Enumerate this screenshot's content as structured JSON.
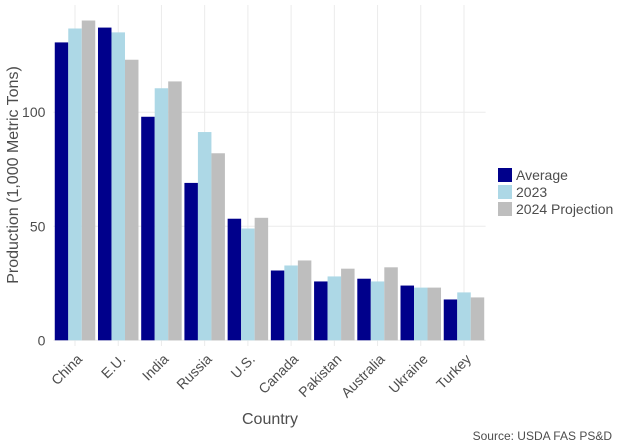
{
  "chart_data": {
    "type": "bar",
    "y_label": "Production (1,000 Metric Tons)",
    "x_label": "Country",
    "caption": "Source: USDA FAS PS&D",
    "categories": [
      "China",
      "E.U.",
      "India",
      "Russia",
      "U.S.",
      "Canada",
      "Pakistan",
      "Australia",
      "Ukraine",
      "Turkey"
    ],
    "series": [
      {
        "name": "Average",
        "color": "#00008b",
        "values": [
          130.6,
          137.1,
          98,
          69,
          53.3,
          30.6,
          25.8,
          27,
          24,
          17.9
        ]
      },
      {
        "name": "2023",
        "color": "#add8e6",
        "values": [
          136.7,
          135,
          110.5,
          91.3,
          49,
          32.8,
          28,
          25.8,
          23.1,
          21
        ]
      },
      {
        "name": "2024 Projection",
        "color": "#bebebe",
        "values": [
          140.2,
          123,
          113.5,
          82,
          53.7,
          35,
          31.4,
          32,
          23.1,
          18.8
        ]
      }
    ],
    "ylim": [
      -2.5,
      147
    ],
    "yticks": [
      0,
      50,
      100
    ],
    "grid": true,
    "legend": "right"
  }
}
